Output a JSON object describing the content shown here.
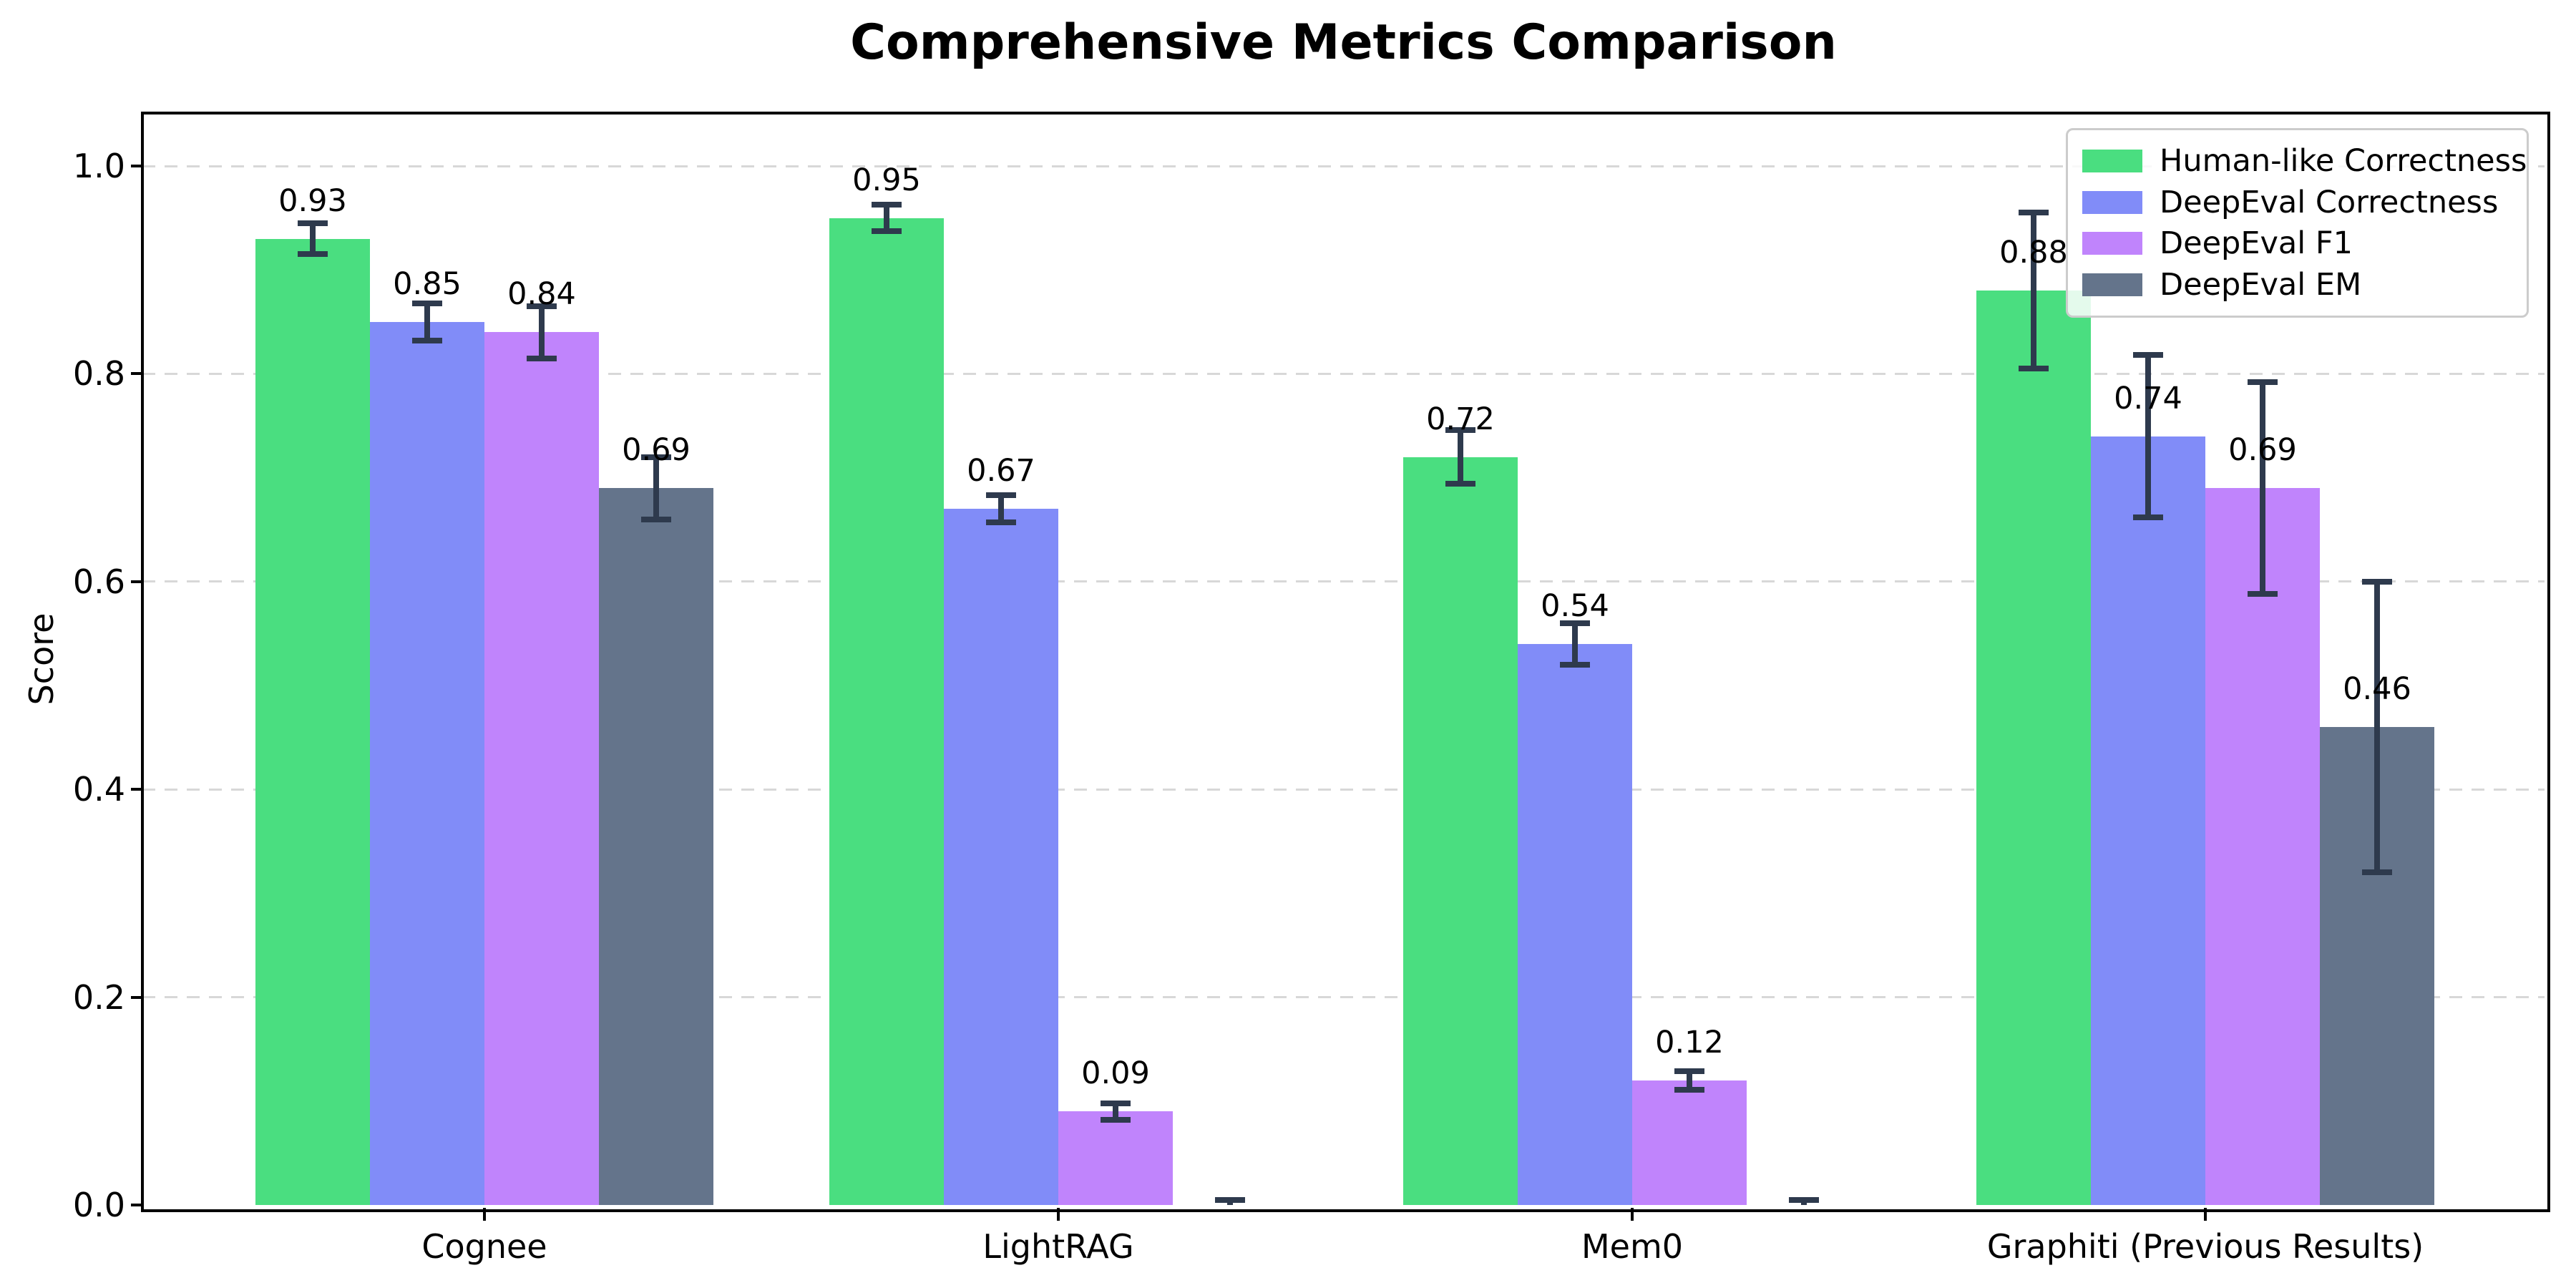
{
  "figure": {
    "background": "#ffffff"
  },
  "chart_data": {
    "type": "bar",
    "title": "Comprehensive Metrics Comparison",
    "ylabel": "Score",
    "xlabel": "",
    "categories": [
      "Cognee",
      "LightRAG",
      "Mem0",
      "Graphiti (Previous Results)"
    ],
    "yticks": [
      "0.0",
      "0.2",
      "0.4",
      "0.6",
      "0.8",
      "1.0"
    ],
    "ylim": [
      0,
      1.05
    ],
    "grid": "horizontal dashed gridlines at y ticks",
    "grid_color": "#d8d8d8",
    "axis_color": "#000000",
    "error_bar_color": "#2e3a4d",
    "legend_position": "upper right",
    "series": [
      {
        "name": "Human-like Correctness",
        "color": "#4ade80",
        "values": [
          0.93,
          0.95,
          0.72,
          0.88
        ],
        "errors": [
          0.015,
          0.013,
          0.026,
          0.075
        ],
        "labels": [
          "0.93",
          "0.95",
          "0.72",
          "0.88"
        ]
      },
      {
        "name": "DeepEval Correctness",
        "color": "#818cf8",
        "values": [
          0.85,
          0.67,
          0.54,
          0.74
        ],
        "errors": [
          0.018,
          0.013,
          0.02,
          0.078
        ],
        "labels": [
          "0.85",
          "0.67",
          "0.54",
          "0.74"
        ]
      },
      {
        "name": "DeepEval F1",
        "color": "#c084fc",
        "values": [
          0.84,
          0.09,
          0.12,
          0.69
        ],
        "errors": [
          0.025,
          0.008,
          0.009,
          0.102
        ],
        "labels": [
          "0.84",
          "0.09",
          "0.12",
          "0.69"
        ]
      },
      {
        "name": "DeepEval EM",
        "color": "#64748b",
        "values": [
          0.69,
          0.0,
          0.0,
          0.46
        ],
        "errors": [
          0.03,
          0.005,
          0.005,
          0.14
        ],
        "labels": [
          "0.69",
          null,
          null,
          "0.46"
        ]
      }
    ]
  }
}
